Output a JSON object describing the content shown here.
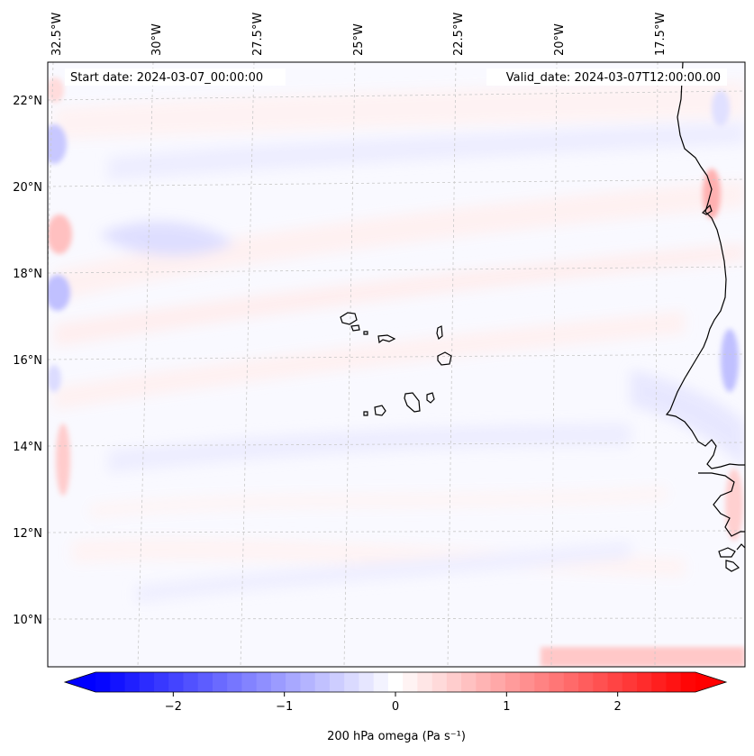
{
  "map": {
    "start_date_text": "Start date: 2024-03-07_00:00:00",
    "valid_date_text": "Valid_date: 2024-03-07T12:00:00.00",
    "lon_ticks": [
      {
        "value": -32.5,
        "label": "32.5°W"
      },
      {
        "value": -30.0,
        "label": "30°W"
      },
      {
        "value": -27.5,
        "label": "27.5°W"
      },
      {
        "value": -25.0,
        "label": "25°W"
      },
      {
        "value": -22.5,
        "label": "22.5°W"
      },
      {
        "value": -20.0,
        "label": "20°W"
      },
      {
        "value": -17.5,
        "label": "17.5°W"
      }
    ],
    "lat_ticks": [
      {
        "value": 22,
        "label": "22°N"
      },
      {
        "value": 20,
        "label": "20°N"
      },
      {
        "value": 18,
        "label": "18°N"
      },
      {
        "value": 16,
        "label": "16°N"
      },
      {
        "value": 14,
        "label": "14°N"
      },
      {
        "value": 12,
        "label": "12°N"
      },
      {
        "value": 10,
        "label": "10°N"
      }
    ],
    "extent": {
      "lon_min": -32.6,
      "lon_max": -15.3,
      "lat_min": 8.9,
      "lat_max": 22.8
    },
    "field": "200 hPa omega",
    "region": "Cape Verde islands and West African coast"
  },
  "colorbar": {
    "label": "200 hPa omega (Pa s⁻¹)",
    "vmin": -2.7,
    "vmax": 2.7,
    "cmap": "bwr",
    "extend": "both",
    "ticks": [
      {
        "value": -2,
        "label": "−2"
      },
      {
        "value": -1,
        "label": "−1"
      },
      {
        "value": 0,
        "label": "0"
      },
      {
        "value": 1,
        "label": "1"
      },
      {
        "value": 2,
        "label": "2"
      }
    ],
    "levels": 41
  },
  "colors": {
    "negative": "#0000ff",
    "positive": "#ff0000",
    "neutral": "#ffffff",
    "coastline": "#000000",
    "gridline": "#c8c8c8"
  }
}
